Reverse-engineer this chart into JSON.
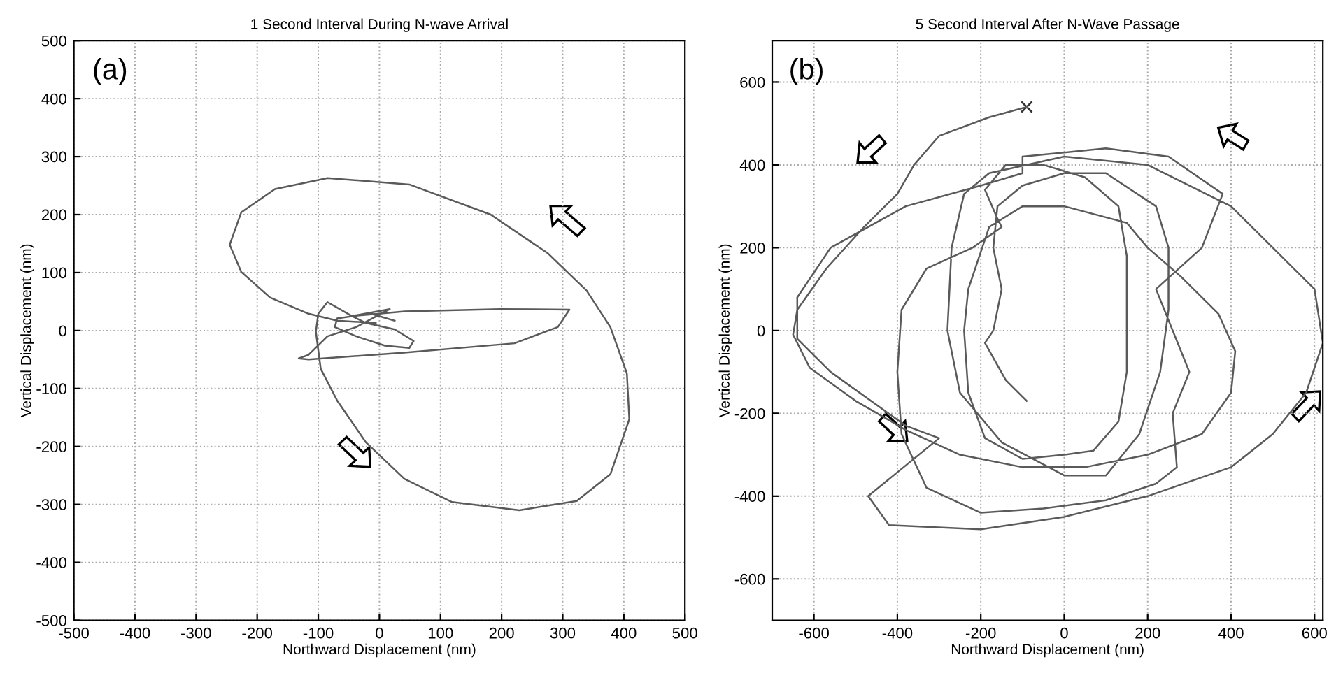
{
  "chart_data": [
    {
      "type": "line",
      "title": "1 Second Interval During N-wave Arrival",
      "xlabel": "Northward Displacement (nm)",
      "ylabel": "Vertical Displacement (nm)",
      "annotations": [
        "(a)"
      ],
      "grid": true,
      "marker": "none",
      "line_style": "solid",
      "xlim": [
        -500,
        500
      ],
      "ylim": [
        -500,
        500
      ],
      "xticks": [
        -500,
        -400,
        -300,
        -200,
        -100,
        0,
        100,
        200,
        300,
        400,
        500
      ],
      "yticks": [
        -500,
        -400,
        -300,
        -200,
        -100,
        0,
        100,
        200,
        300,
        400,
        500
      ],
      "series": [
        {
          "color": "#5a5a5a",
          "x": [
            25,
            -14,
            -69,
            -73,
            -38,
            9,
            49,
            56,
            25,
            -22,
            -45,
            17,
            -38,
            -85,
            -116,
            -132,
            -116,
            41,
            221,
            292,
            311,
            198,
            41,
            -45,
            -85,
            -100,
            -104,
            -96,
            -69,
            -22,
            41,
            119,
            229,
            323,
            378,
            409,
            405,
            378,
            339,
            276,
            182,
            49,
            -85,
            -171,
            -226,
            -245,
            -226,
            -179,
            -116,
            -69,
            -6
          ],
          "values": [
            17,
            29,
            21,
            6,
            -10,
            -26,
            -30,
            -18,
            2,
            13,
            25,
            37,
            6,
            -10,
            -42,
            -48,
            -50,
            -38,
            -22,
            6,
            36,
            37,
            33,
            25,
            49,
            29,
            -2,
            -66,
            -121,
            -193,
            -256,
            -296,
            -310,
            -294,
            -248,
            -153,
            -74,
            6,
            69,
            133,
            200,
            252,
            263,
            244,
            204,
            148,
            101,
            57,
            29,
            17,
            13
          ]
        }
      ]
    },
    {
      "type": "line",
      "title": "5 Second Interval After N-Wave Passage",
      "xlabel": "Northward Displacement (nm)",
      "ylabel": "Vertical Displacement (nm)",
      "annotations": [
        "(b)"
      ],
      "grid": true,
      "line_style": "solid",
      "xlim": [
        -700,
        620
      ],
      "ylim": [
        -700,
        700
      ],
      "xticks": [
        -600,
        -400,
        -200,
        0,
        200,
        400,
        600
      ],
      "yticks": [
        -600,
        -400,
        -200,
        0,
        200,
        400,
        600
      ],
      "series": [
        {
          "color": "#5a5a5a",
          "marker": "none",
          "x": [
            -90,
            -180,
            -300,
            -360,
            -400,
            -480,
            -570,
            -640,
            -650,
            -610,
            -500,
            -380,
            -250,
            -100,
            50,
            200,
            330,
            400,
            410,
            370,
            280,
            200,
            150,
            0,
            -100,
            -180,
            -230,
            -240,
            -230,
            -190,
            -100,
            0,
            70,
            130,
            150,
            150,
            150,
            130,
            50,
            -50,
            -140,
            -190,
            -160,
            -150,
            -220,
            -330,
            -390,
            -400,
            -390,
            -330,
            -200,
            -50,
            100,
            220,
            270,
            260,
            300,
            220,
            330,
            380,
            250,
            100,
            -100,
            -100,
            -200,
            -380,
            -560,
            -640,
            -640,
            -560,
            -380,
            -300,
            -470,
            -420,
            -200,
            0,
            200,
            400,
            500,
            580,
            620,
            600,
            500,
            400,
            200,
            0,
            -180,
            -240,
            -270,
            -280,
            -250,
            -150,
            0,
            100,
            180,
            230,
            250,
            250,
            220,
            100,
            0,
            -100,
            -160,
            -170,
            -150,
            -170,
            -190,
            -140,
            -100,
            -90
          ],
          "values": [
            540,
            515,
            470,
            400,
            330,
            250,
            150,
            50,
            -10,
            -90,
            -170,
            -240,
            -300,
            -330,
            -330,
            -300,
            -250,
            -150,
            -50,
            40,
            130,
            200,
            260,
            300,
            300,
            250,
            100,
            0,
            -150,
            -260,
            -310,
            -300,
            -290,
            -220,
            -100,
            50,
            180,
            300,
            370,
            400,
            400,
            340,
            270,
            250,
            200,
            150,
            50,
            -100,
            -250,
            -380,
            -440,
            -430,
            -410,
            -370,
            -330,
            -200,
            -100,
            100,
            200,
            330,
            420,
            440,
            420,
            380,
            350,
            300,
            200,
            80,
            -20,
            -100,
            -230,
            -260,
            -400,
            -470,
            -480,
            -450,
            -400,
            -330,
            -250,
            -150,
            -30,
            100,
            200,
            300,
            400,
            420,
            380,
            330,
            200,
            0,
            -150,
            -270,
            -350,
            -350,
            -250,
            -100,
            50,
            200,
            300,
            380,
            380,
            350,
            300,
            200,
            100,
            0,
            -30,
            -120,
            -160,
            -170
          ]
        },
        {
          "type": "scatter",
          "color": "#333333",
          "marker": "cross",
          "x": [
            -90
          ],
          "values": [
            540
          ]
        }
      ]
    }
  ]
}
